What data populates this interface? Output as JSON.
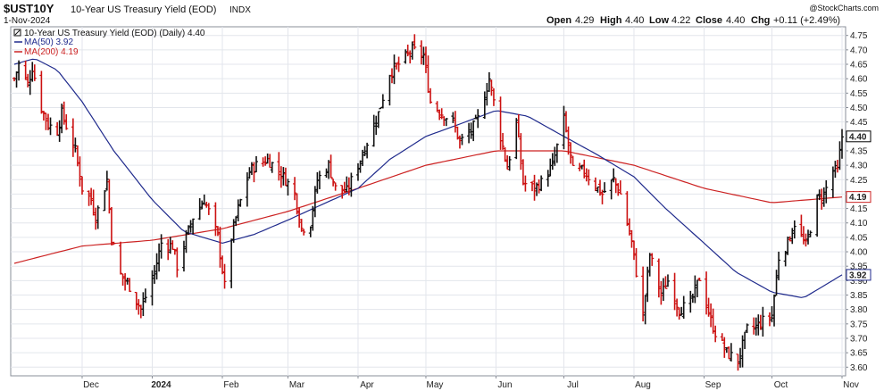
{
  "header": {
    "symbol": "$UST10Y",
    "name": "10-Year US Treasury Yield (EOD)",
    "exchange": "INDX",
    "date": "1-Nov-2024",
    "watermark": "@StockCharts.com",
    "stats": {
      "open_label": "Open",
      "open": "4.29",
      "high_label": "High",
      "high": "4.40",
      "low_label": "Low",
      "low": "4.22",
      "close_label": "Close",
      "close": "4.40",
      "chg_label": "Chg",
      "chg": "+0.11 (+2.49%)"
    }
  },
  "legend": {
    "main": "10-Year US Treasury Yield (EOD) (Daily) 4.40",
    "ma50": "MA(50) 3.92",
    "ma200": "MA(200) 4.19"
  },
  "colors": {
    "up": "#111111",
    "down": "#cc1111",
    "ma50": "#1f2a8c",
    "ma200": "#cc2222",
    "grid": "#e3e6ec",
    "price_tag": "#000000"
  },
  "chart_data": {
    "type": "line",
    "style": "ohlc-bars",
    "ylim": [
      3.57,
      4.78
    ],
    "y_ticks": [
      3.6,
      3.65,
      3.7,
      3.75,
      3.8,
      3.85,
      3.9,
      3.95,
      4.0,
      4.05,
      4.1,
      4.15,
      4.2,
      4.25,
      4.3,
      4.35,
      4.4,
      4.45,
      4.5,
      4.55,
      4.6,
      4.65,
      4.7,
      4.75
    ],
    "y_tick_labels": [
      "3.60",
      "3.65",
      "3.70",
      "3.75",
      "3.80",
      "3.85",
      "3.90",
      "3.95",
      "4.00",
      "4.05",
      "4.10",
      "4.15",
      "4.20",
      "4.25",
      "4.30",
      "4.35",
      "4.40",
      "4.45",
      "4.50",
      "4.55",
      "4.60",
      "4.65",
      "4.70",
      "4.75"
    ],
    "x_range": [
      "2023-11-01",
      "2024-11-01"
    ],
    "x_ticks": [
      {
        "date": "2023-12-01",
        "label": "Dec",
        "bold": false
      },
      {
        "date": "2024-01-01",
        "label": "2024",
        "bold": true
      },
      {
        "date": "2024-02-01",
        "label": "Feb",
        "bold": false
      },
      {
        "date": "2024-03-01",
        "label": "Mar",
        "bold": false
      },
      {
        "date": "2024-04-01",
        "label": "Apr",
        "bold": false
      },
      {
        "date": "2024-05-01",
        "label": "May",
        "bold": false
      },
      {
        "date": "2024-06-01",
        "label": "Jun",
        "bold": false
      },
      {
        "date": "2024-07-01",
        "label": "Jul",
        "bold": false
      },
      {
        "date": "2024-08-01",
        "label": "Aug",
        "bold": false
      },
      {
        "date": "2024-09-01",
        "label": "Sep",
        "bold": false
      },
      {
        "date": "2024-10-01",
        "label": "Oct",
        "bold": false
      },
      {
        "date": "2024-11-01",
        "label": "Nov",
        "bold": false
      }
    ],
    "price_keypoints": [
      [
        "2023-11-01",
        4.6
      ],
      [
        "2023-11-03",
        4.65
      ],
      [
        "2023-11-07",
        4.58
      ],
      [
        "2023-11-09",
        4.64
      ],
      [
        "2023-11-13",
        4.5
      ],
      [
        "2023-11-16",
        4.44
      ],
      [
        "2023-11-20",
        4.42
      ],
      [
        "2023-11-22",
        4.48
      ],
      [
        "2023-11-28",
        4.35
      ],
      [
        "2023-12-01",
        4.22
      ],
      [
        "2023-12-05",
        4.18
      ],
      [
        "2023-12-07",
        4.12
      ],
      [
        "2023-12-12",
        4.25
      ],
      [
        "2023-12-14",
        4.05
      ],
      [
        "2023-12-18",
        3.92
      ],
      [
        "2023-12-22",
        3.88
      ],
      [
        "2023-12-27",
        3.8
      ],
      [
        "2024-01-02",
        3.93
      ],
      [
        "2024-01-05",
        4.03
      ],
      [
        "2024-01-10",
        4.02
      ],
      [
        "2024-01-12",
        3.95
      ],
      [
        "2024-01-16",
        4.05
      ],
      [
        "2024-01-19",
        4.12
      ],
      [
        "2024-01-24",
        4.18
      ],
      [
        "2024-01-26",
        4.14
      ],
      [
        "2024-01-30",
        4.05
      ],
      [
        "2024-02-02",
        3.88
      ],
      [
        "2024-02-05",
        4.05
      ],
      [
        "2024-02-08",
        4.15
      ],
      [
        "2024-02-13",
        4.28
      ],
      [
        "2024-02-16",
        4.3
      ],
      [
        "2024-02-21",
        4.32
      ],
      [
        "2024-02-26",
        4.28
      ],
      [
        "2024-02-29",
        4.25
      ],
      [
        "2024-03-04",
        4.2
      ],
      [
        "2024-03-07",
        4.08
      ],
      [
        "2024-03-11",
        4.1
      ],
      [
        "2024-03-14",
        4.25
      ],
      [
        "2024-03-19",
        4.3
      ],
      [
        "2024-03-22",
        4.22
      ],
      [
        "2024-03-27",
        4.21
      ],
      [
        "2024-04-01",
        4.3
      ],
      [
        "2024-04-05",
        4.38
      ],
      [
        "2024-04-10",
        4.48
      ],
      [
        "2024-04-15",
        4.62
      ],
      [
        "2024-04-19",
        4.65
      ],
      [
        "2024-04-25",
        4.7
      ],
      [
        "2024-04-30",
        4.68
      ],
      [
        "2024-05-03",
        4.52
      ],
      [
        "2024-05-08",
        4.48
      ],
      [
        "2024-05-13",
        4.45
      ],
      [
        "2024-05-16",
        4.38
      ],
      [
        "2024-05-21",
        4.42
      ],
      [
        "2024-05-24",
        4.46
      ],
      [
        "2024-05-29",
        4.6
      ],
      [
        "2024-06-03",
        4.4
      ],
      [
        "2024-06-06",
        4.29
      ],
      [
        "2024-06-10",
        4.45
      ],
      [
        "2024-06-13",
        4.24
      ],
      [
        "2024-06-18",
        4.22
      ],
      [
        "2024-06-21",
        4.24
      ],
      [
        "2024-06-26",
        4.3
      ],
      [
        "2024-07-01",
        4.46
      ],
      [
        "2024-07-05",
        4.28
      ],
      [
        "2024-07-10",
        4.28
      ],
      [
        "2024-07-15",
        4.23
      ],
      [
        "2024-07-18",
        4.2
      ],
      [
        "2024-07-23",
        4.25
      ],
      [
        "2024-07-26",
        4.2
      ],
      [
        "2024-07-31",
        4.03
      ],
      [
        "2024-08-05",
        3.78
      ],
      [
        "2024-08-08",
        3.99
      ],
      [
        "2024-08-13",
        3.85
      ],
      [
        "2024-08-16",
        3.9
      ],
      [
        "2024-08-21",
        3.8
      ],
      [
        "2024-08-26",
        3.82
      ],
      [
        "2024-08-30",
        3.91
      ],
      [
        "2024-09-04",
        3.76
      ],
      [
        "2024-09-06",
        3.72
      ],
      [
        "2024-09-11",
        3.65
      ],
      [
        "2024-09-16",
        3.62
      ],
      [
        "2024-09-20",
        3.73
      ],
      [
        "2024-09-24",
        3.74
      ],
      [
        "2024-09-27",
        3.76
      ],
      [
        "2024-10-01",
        3.78
      ],
      [
        "2024-10-04",
        3.98
      ],
      [
        "2024-10-08",
        4.03
      ],
      [
        "2024-10-11",
        4.1
      ],
      [
        "2024-10-16",
        4.02
      ],
      [
        "2024-10-21",
        4.18
      ],
      [
        "2024-10-24",
        4.2
      ],
      [
        "2024-10-28",
        4.28
      ],
      [
        "2024-10-30",
        4.28
      ],
      [
        "2024-11-01",
        4.4
      ]
    ],
    "ma50_keypoints": [
      [
        "2023-11-01",
        4.65
      ],
      [
        "2023-11-10",
        4.67
      ],
      [
        "2023-11-20",
        4.63
      ],
      [
        "2023-12-01",
        4.52
      ],
      [
        "2023-12-15",
        4.35
      ],
      [
        "2024-01-01",
        4.18
      ],
      [
        "2024-01-15",
        4.07
      ],
      [
        "2024-02-01",
        4.03
      ],
      [
        "2024-02-15",
        4.06
      ],
      [
        "2024-03-01",
        4.11
      ],
      [
        "2024-03-15",
        4.16
      ],
      [
        "2024-04-01",
        4.22
      ],
      [
        "2024-04-15",
        4.32
      ],
      [
        "2024-05-01",
        4.4
      ],
      [
        "2024-05-15",
        4.44
      ],
      [
        "2024-06-01",
        4.49
      ],
      [
        "2024-06-15",
        4.47
      ],
      [
        "2024-07-01",
        4.4
      ],
      [
        "2024-07-15",
        4.34
      ],
      [
        "2024-08-01",
        4.26
      ],
      [
        "2024-08-15",
        4.15
      ],
      [
        "2024-09-01",
        4.03
      ],
      [
        "2024-09-15",
        3.93
      ],
      [
        "2024-10-01",
        3.86
      ],
      [
        "2024-10-15",
        3.84
      ],
      [
        "2024-11-01",
        3.92
      ]
    ],
    "ma200_keypoints": [
      [
        "2023-11-01",
        3.96
      ],
      [
        "2023-12-01",
        4.02
      ],
      [
        "2024-01-01",
        4.04
      ],
      [
        "2024-02-01",
        4.08
      ],
      [
        "2024-03-01",
        4.14
      ],
      [
        "2024-04-01",
        4.22
      ],
      [
        "2024-05-01",
        4.3
      ],
      [
        "2024-06-01",
        4.35
      ],
      [
        "2024-07-01",
        4.35
      ],
      [
        "2024-08-01",
        4.3
      ],
      [
        "2024-09-01",
        4.22
      ],
      [
        "2024-10-01",
        4.17
      ],
      [
        "2024-11-01",
        4.19
      ]
    ],
    "last_values": {
      "close": 4.4,
      "ma50": 3.92,
      "ma200": 4.19
    }
  }
}
